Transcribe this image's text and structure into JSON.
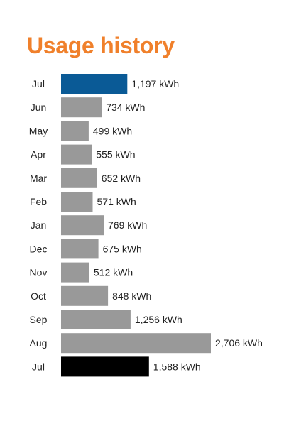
{
  "title": "Usage history",
  "chart_data": {
    "type": "bar",
    "orientation": "horizontal",
    "title": "Usage history",
    "categories": [
      "Jul",
      "Jun",
      "May",
      "Apr",
      "Mar",
      "Feb",
      "Jan",
      "Dec",
      "Nov",
      "Oct",
      "Sep",
      "Aug",
      "Jul"
    ],
    "values": [
      1197,
      734,
      499,
      555,
      652,
      571,
      769,
      675,
      512,
      848,
      1256,
      2706,
      1588
    ],
    "value_labels": [
      "1,197 kWh",
      "734 kWh",
      "499 kWh",
      "555 kWh",
      "652 kWh",
      "571 kWh",
      "769 kWh",
      "675 kWh",
      "512 kWh",
      "848 kWh",
      "1,256 kWh",
      "2,706 kWh",
      "1,588 kWh"
    ],
    "bar_colors": [
      "#0a5a96",
      "#999999",
      "#999999",
      "#999999",
      "#999999",
      "#999999",
      "#999999",
      "#999999",
      "#999999",
      "#999999",
      "#999999",
      "#999999",
      "#000000"
    ],
    "title_color": "#f0802b",
    "grid": false
  }
}
